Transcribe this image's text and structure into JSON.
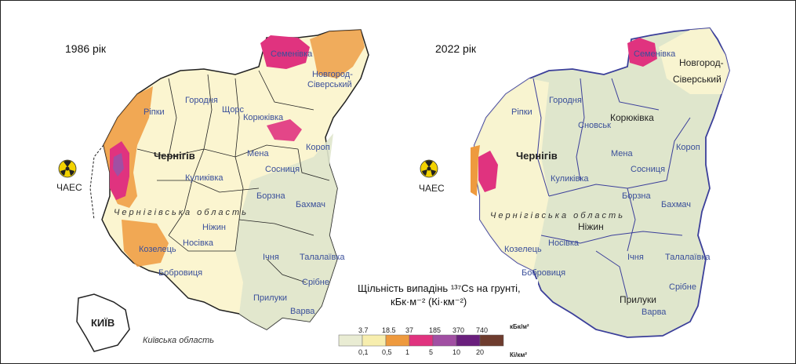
{
  "maps": [
    {
      "year_label": "1986 рік",
      "oblast_label": "Чернігівська область",
      "cities": {
        "semenivka": "Семенівка",
        "novhorod": "Новгород-",
        "siverskyi": "Сіверський",
        "horodnia": "Городня",
        "shchors": "Щорс",
        "ripky": "Ріпки",
        "koriukivka": "Корюківка",
        "chernihiv": "Чернігів",
        "mena": "Мена",
        "korop": "Короп",
        "sosnytsia": "Сосниця",
        "kulykivka": "Куликівка",
        "borzna": "Борзна",
        "bakhmach": "Бахмач",
        "nizhyn": "Ніжин",
        "nosivka": "Носівка",
        "kozelets": "Козелець",
        "bobrovytsia": "Бобровиця",
        "ichnia": "Ічня",
        "talalaivka": "Талалаївка",
        "sribne": "Срібне",
        "pryluky": "Прилуки",
        "varva": "Варва"
      },
      "chaes": "ЧАЕС",
      "kyiv": "КИЇВ",
      "kyiv_oblast": "Київська область"
    },
    {
      "year_label": "2022 рік",
      "oblast_label": "Чернігівська область",
      "cities": {
        "semenivka": "Семенівка",
        "novhorod": "Новгород-",
        "siverskyi": "Сіверський",
        "horodnia": "Городня",
        "snovsk": "Сновськ",
        "ripky": "Ріпки",
        "koriukivka": "Корюківка",
        "chernihiv": "Чернігів",
        "mena": "Мена",
        "korop": "Короп",
        "sosnytsia": "Сосниця",
        "kulykivka": "Куликівка",
        "borzna": "Борзна",
        "bakhmach": "Бахмач",
        "nizhyn": "Ніжин",
        "nosivka": "Носівка",
        "kozelets": "Козелець",
        "bobrovytsia": "Бобровиця",
        "ichnia": "Ічня",
        "talalaivka": "Талалаївка",
        "sribne": "Срібне",
        "pryluky": "Прилуки",
        "varva": "Варва"
      },
      "chaes": "ЧАЕС"
    }
  ],
  "legend": {
    "title_line1": "Щільність випадінь ¹³⁷Cs на грунті,",
    "title_line2": "кБк·м⁻² (Кі·км⁻²)",
    "kbq_ticks": [
      "3.7",
      "18.5",
      "37",
      "185",
      "370",
      "740"
    ],
    "ci_ticks": [
      "0,1",
      "0,5",
      "1",
      "5",
      "10",
      "20"
    ],
    "unit_top": "кБк/м²",
    "unit_bottom": "Кі/км²",
    "colors": [
      "#e9ecd3",
      "#f7eeae",
      "#ee9a3e",
      "#e0337f",
      "#a14fa3",
      "#6a1f7d",
      "#6e3c2e"
    ]
  },
  "palette": {
    "region_fill_light": "#fbf5d0",
    "region_fill_green": "#dfe6cc",
    "border_dark": "#222222",
    "border_blue": "#3b3f9a"
  }
}
